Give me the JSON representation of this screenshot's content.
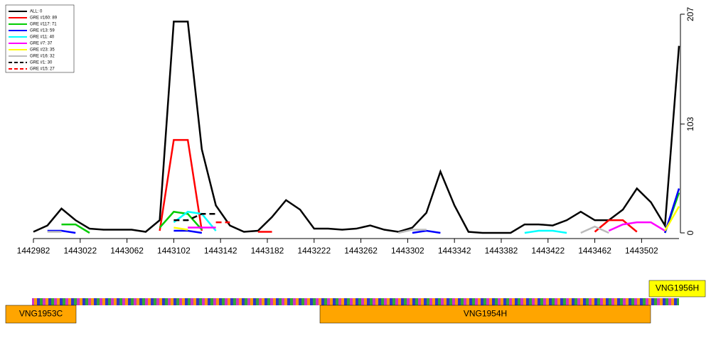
{
  "chart_data": {
    "type": "line",
    "x": [
      1442982,
      1442994,
      1443006,
      1443018,
      1443030,
      1443042,
      1443054,
      1443066,
      1443078,
      1443090,
      1443102,
      1443114,
      1443126,
      1443138,
      1443150,
      1443162,
      1443174,
      1443186,
      1443198,
      1443210,
      1443222,
      1443234,
      1443246,
      1443258,
      1443270,
      1443282,
      1443294,
      1443306,
      1443318,
      1443330,
      1443342,
      1443354,
      1443366,
      1443378,
      1443390,
      1443402,
      1443414,
      1443426,
      1443438,
      1443450,
      1443462,
      1443474,
      1443486,
      1443498,
      1443510,
      1443522,
      1443534
    ],
    "series": [
      {
        "name": "ALL: 0",
        "color": "#000000",
        "dash": false,
        "values": [
          1,
          7,
          23,
          12,
          4,
          3,
          3,
          3,
          1,
          12,
          200,
          200,
          79,
          26,
          7,
          1,
          2,
          15,
          31,
          22,
          4,
          4,
          3,
          4,
          7,
          3,
          1,
          5,
          19,
          58,
          26,
          1,
          0,
          0,
          0,
          8,
          8,
          7,
          12,
          20,
          12,
          12,
          22,
          42,
          29,
          7,
          177
        ]
      },
      {
        "name": "GRE #160: 89",
        "color": "#ff0000",
        "dash": false,
        "values": [
          null,
          null,
          null,
          null,
          null,
          null,
          null,
          null,
          null,
          2,
          88,
          88,
          2,
          null,
          null,
          null,
          1,
          1,
          null,
          null,
          null,
          null,
          null,
          null,
          null,
          null,
          null,
          null,
          null,
          null,
          null,
          null,
          null,
          null,
          null,
          null,
          null,
          null,
          null,
          null,
          1,
          12,
          12,
          1,
          null,
          null,
          null
        ]
      },
      {
        "name": "GRE #117: 71",
        "color": "#00cc00",
        "dash": false,
        "values": [
          null,
          null,
          8,
          8,
          0,
          null,
          null,
          null,
          null,
          5,
          20,
          18,
          3,
          null,
          null,
          null,
          null,
          null,
          null,
          null,
          null,
          null,
          null,
          null,
          null,
          null,
          null,
          null,
          null,
          null,
          null,
          null,
          null,
          null,
          null,
          null,
          null,
          null,
          null,
          null,
          null,
          null,
          null,
          null,
          null,
          0,
          38
        ]
      },
      {
        "name": "GRE #13: 59",
        "color": "#0000ff",
        "dash": false,
        "values": [
          null,
          2,
          2,
          0,
          null,
          null,
          null,
          null,
          null,
          null,
          2,
          2,
          0,
          null,
          null,
          null,
          null,
          null,
          null,
          null,
          null,
          null,
          null,
          null,
          null,
          null,
          null,
          0,
          2,
          0,
          null,
          null,
          null,
          null,
          null,
          null,
          null,
          null,
          null,
          null,
          null,
          null,
          null,
          null,
          null,
          0,
          42
        ]
      },
      {
        "name": "GRE #11: 40",
        "color": "#00ffff",
        "dash": false,
        "values": [
          null,
          null,
          null,
          null,
          null,
          null,
          null,
          null,
          null,
          null,
          10,
          20,
          18,
          2,
          null,
          null,
          null,
          null,
          null,
          null,
          null,
          null,
          null,
          null,
          null,
          null,
          null,
          null,
          null,
          null,
          null,
          null,
          null,
          null,
          null,
          0,
          2,
          2,
          0,
          null,
          null,
          null,
          null,
          null,
          null,
          null,
          null
        ]
      },
      {
        "name": "GRE #7: 37",
        "color": "#ff00ff",
        "dash": false,
        "values": [
          null,
          null,
          null,
          null,
          null,
          null,
          null,
          null,
          null,
          null,
          null,
          5,
          5,
          5,
          null,
          null,
          null,
          null,
          null,
          null,
          null,
          null,
          null,
          null,
          null,
          null,
          null,
          null,
          null,
          null,
          null,
          null,
          null,
          null,
          null,
          null,
          null,
          null,
          null,
          null,
          null,
          2,
          8,
          10,
          10,
          2,
          null
        ]
      },
      {
        "name": "GRE #23: 35",
        "color": "#ffff00",
        "dash": false,
        "values": [
          null,
          null,
          null,
          null,
          null,
          null,
          null,
          null,
          null,
          null,
          5,
          3,
          null,
          null,
          null,
          null,
          null,
          null,
          null,
          null,
          null,
          null,
          null,
          null,
          null,
          null,
          null,
          null,
          null,
          null,
          null,
          null,
          null,
          null,
          null,
          null,
          null,
          null,
          null,
          null,
          null,
          null,
          null,
          null,
          null,
          2,
          25
        ]
      },
      {
        "name": "GRE #16: 32",
        "color": "#bbbbbb",
        "dash": false,
        "values": [
          null,
          1,
          1,
          null,
          null,
          null,
          null,
          null,
          null,
          null,
          null,
          null,
          null,
          null,
          null,
          null,
          null,
          null,
          null,
          null,
          null,
          null,
          null,
          null,
          null,
          null,
          0,
          3,
          3,
          null,
          null,
          null,
          null,
          null,
          null,
          null,
          null,
          null,
          null,
          0,
          6,
          0,
          null,
          null,
          null,
          null,
          null
        ]
      },
      {
        "name": "GRE #1: 30",
        "color": "#000000",
        "dash": true,
        "values": [
          null,
          null,
          null,
          null,
          null,
          null,
          null,
          null,
          null,
          null,
          12,
          12,
          18,
          18,
          null,
          null,
          null,
          null,
          null,
          null,
          null,
          null,
          null,
          null,
          null,
          null,
          null,
          null,
          null,
          null,
          null,
          null,
          null,
          null,
          null,
          null,
          null,
          null,
          null,
          null,
          null,
          null,
          null,
          null,
          null,
          null,
          null
        ]
      },
      {
        "name": "GRE #15: 27",
        "color": "#ff0000",
        "dash": true,
        "values": [
          null,
          null,
          null,
          null,
          null,
          null,
          null,
          null,
          null,
          null,
          null,
          null,
          null,
          10,
          10,
          null,
          null,
          null,
          null,
          null,
          null,
          null,
          null,
          null,
          null,
          null,
          null,
          null,
          null,
          null,
          null,
          null,
          null,
          null,
          null,
          null,
          null,
          null,
          null,
          null,
          null,
          null,
          null,
          null,
          null,
          null,
          null
        ]
      }
    ],
    "xlim": [
      1442982,
      1443534
    ],
    "xticks": [
      1442982,
      1443022,
      1443062,
      1443102,
      1443142,
      1443182,
      1443222,
      1443262,
      1443302,
      1443342,
      1443382,
      1443422,
      1443462,
      1443502
    ],
    "ylim": [
      0,
      207
    ],
    "yticks": [
      0,
      103,
      207
    ],
    "legend": "top-left",
    "annotations": [
      "VNG1953C",
      "VNG1954H",
      "VNG1956H"
    ]
  }
}
